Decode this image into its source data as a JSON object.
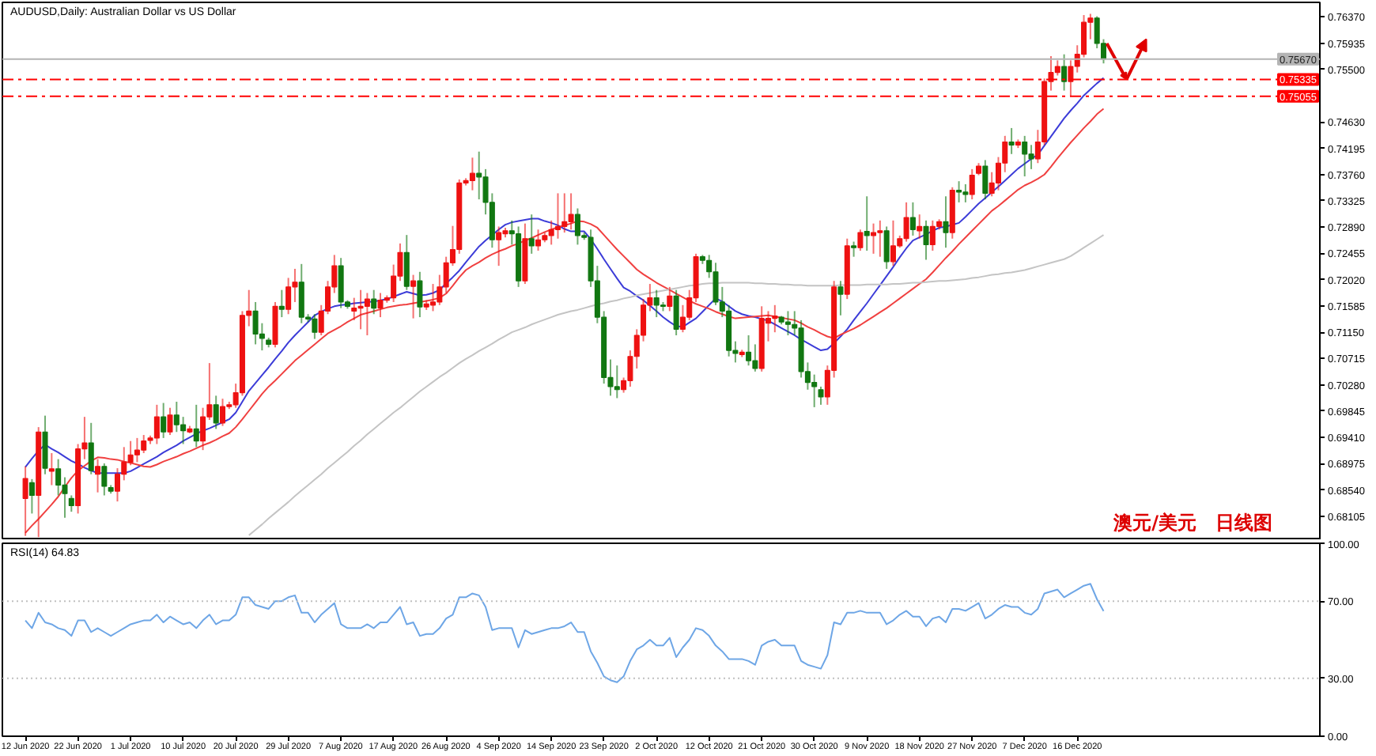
{
  "chart_data": [
    {
      "type": "candlestick",
      "title": "AUDUSD,Daily:  Australian Dollar vs US Dollar",
      "tick_labels": "y",
      "categories": [
        null,
        null,
        null,
        null,
        null,
        null,
        null,
        null,
        null,
        null,
        null,
        null,
        null,
        null,
        null,
        null,
        null,
        null,
        null,
        null,
        null,
        null,
        null,
        null,
        null,
        null,
        null,
        null,
        null,
        null,
        null,
        null,
        null,
        null,
        null,
        null,
        null,
        null,
        null,
        null,
        null,
        null,
        null,
        null,
        null,
        null,
        null,
        null,
        null,
        null,
        null,
        null,
        null,
        null,
        null,
        null,
        null,
        null,
        null,
        null,
        null,
        null,
        null,
        null,
        null,
        null,
        null,
        null,
        null,
        null,
        null,
        null,
        null,
        null,
        null,
        null,
        null,
        null,
        null,
        null,
        null,
        null,
        null,
        null,
        null,
        null,
        null,
        null,
        null,
        null,
        null,
        null,
        null,
        null,
        null,
        null,
        null,
        null,
        null,
        null,
        null,
        null,
        null,
        null,
        null,
        null,
        null,
        null,
        null,
        null,
        null,
        null,
        null,
        null,
        null,
        null,
        null,
        null,
        null,
        null,
        null,
        null,
        null,
        null,
        null,
        null,
        null,
        null,
        null,
        null,
        null,
        null,
        null,
        null,
        null,
        null,
        null,
        null,
        null,
        null,
        null,
        null,
        null,
        null,
        null,
        null,
        null,
        null,
        null,
        null,
        null,
        null,
        null,
        null,
        null,
        null,
        null,
        null,
        null,
        null,
        null,
        null,
        null,
        null,
        null
      ],
      "ohlc": [
        [
          0.684,
          0.6893,
          0.6778,
          0.6873
        ],
        [
          0.6866,
          0.6872,
          0.6815,
          0.6845
        ],
        [
          0.6845,
          0.6958,
          0.6776,
          0.695
        ],
        [
          0.695,
          0.6977,
          0.688,
          0.689
        ],
        [
          0.6885,
          0.6915,
          0.6862,
          0.6889
        ],
        [
          0.6889,
          0.6905,
          0.6845,
          0.6862
        ],
        [
          0.6862,
          0.6875,
          0.6808,
          0.6848
        ],
        [
          0.684,
          0.6845,
          0.6818,
          0.6828
        ],
        [
          0.6828,
          0.693,
          0.6815,
          0.6922
        ],
        [
          0.6922,
          0.6975,
          0.6905,
          0.6932
        ],
        [
          0.6932,
          0.6965,
          0.688,
          0.6886
        ],
        [
          0.688,
          0.6905,
          0.685,
          0.6893
        ],
        [
          0.6893,
          0.6898,
          0.6845,
          0.686
        ],
        [
          0.6858,
          0.6862,
          0.6848,
          0.6852
        ],
        [
          0.6852,
          0.689,
          0.6835,
          0.688
        ],
        [
          0.688,
          0.6925,
          0.687,
          0.69
        ],
        [
          0.69,
          0.6935,
          0.6895,
          0.6912
        ],
        [
          0.6912,
          0.694,
          0.69,
          0.692
        ],
        [
          0.692,
          0.6945,
          0.6915,
          0.6935
        ],
        [
          0.6936,
          0.6944,
          0.693,
          0.694
        ],
        [
          0.694,
          0.6995,
          0.693,
          0.6975
        ],
        [
          0.6975,
          0.6998,
          0.694,
          0.695
        ],
        [
          0.695,
          0.699,
          0.6945,
          0.6978
        ],
        [
          0.6978,
          0.7,
          0.695,
          0.6962
        ],
        [
          0.6962,
          0.6975,
          0.693,
          0.6952
        ],
        [
          0.695,
          0.696,
          0.6948,
          0.6955
        ],
        [
          0.6955,
          0.6995,
          0.6925,
          0.6935
        ],
        [
          0.6935,
          0.699,
          0.692,
          0.6975
        ],
        [
          0.6975,
          0.7064,
          0.697,
          0.6995
        ],
        [
          0.6995,
          0.701,
          0.6955,
          0.6965
        ],
        [
          0.6965,
          0.7005,
          0.696,
          0.6992
        ],
        [
          0.6992,
          0.7,
          0.6988,
          0.6995
        ],
        [
          0.6995,
          0.703,
          0.699,
          0.7015
        ],
        [
          0.7015,
          0.715,
          0.701,
          0.7143
        ],
        [
          0.7143,
          0.7185,
          0.7125,
          0.715
        ],
        [
          0.715,
          0.7165,
          0.7095,
          0.7112
        ],
        [
          0.7112,
          0.713,
          0.7085,
          0.7105
        ],
        [
          0.7102,
          0.7106,
          0.709,
          0.7095
        ],
        [
          0.7095,
          0.7165,
          0.709,
          0.7158
        ],
        [
          0.7158,
          0.7185,
          0.714,
          0.7153
        ],
        [
          0.7153,
          0.7205,
          0.7145,
          0.719
        ],
        [
          0.719,
          0.722,
          0.7165,
          0.7198
        ],
        [
          0.7198,
          0.7228,
          0.713,
          0.714
        ],
        [
          0.714,
          0.7145,
          0.7132,
          0.7137
        ],
        [
          0.7137,
          0.7145,
          0.7104,
          0.7115
        ],
        [
          0.7115,
          0.716,
          0.711,
          0.715
        ],
        [
          0.715,
          0.72,
          0.7145,
          0.719
        ],
        [
          0.719,
          0.7243,
          0.718,
          0.7225
        ],
        [
          0.7225,
          0.7238,
          0.7155,
          0.7165
        ],
        [
          0.7165,
          0.7168,
          0.7154,
          0.7158
        ],
        [
          0.715,
          0.7172,
          0.7135,
          0.7155
        ],
        [
          0.7155,
          0.7185,
          0.712,
          0.7158
        ],
        [
          0.7158,
          0.718,
          0.711,
          0.717
        ],
        [
          0.717,
          0.7185,
          0.7145,
          0.7155
        ],
        [
          0.7155,
          0.718,
          0.714,
          0.7168
        ],
        [
          0.7168,
          0.7176,
          0.7164,
          0.7172
        ],
        [
          0.7172,
          0.7227,
          0.7165,
          0.7208
        ],
        [
          0.7208,
          0.7262,
          0.72,
          0.7247
        ],
        [
          0.7247,
          0.7276,
          0.7185,
          0.7191
        ],
        [
          0.7191,
          0.721,
          0.7138,
          0.72
        ],
        [
          0.72,
          0.7215,
          0.714,
          0.7157
        ],
        [
          0.7157,
          0.7168,
          0.7152,
          0.7162
        ],
        [
          0.716,
          0.7195,
          0.715,
          0.7165
        ],
        [
          0.7165,
          0.721,
          0.716,
          0.719
        ],
        [
          0.719,
          0.724,
          0.718,
          0.723
        ],
        [
          0.723,
          0.7291,
          0.7225,
          0.7252
        ],
        [
          0.7252,
          0.7368,
          0.7245,
          0.7362
        ],
        [
          0.7362,
          0.737,
          0.7358,
          0.7366
        ],
        [
          0.7366,
          0.7404,
          0.735,
          0.7378
        ],
        [
          0.7378,
          0.7414,
          0.7335,
          0.7372
        ],
        [
          0.7372,
          0.7385,
          0.731,
          0.733
        ],
        [
          0.733,
          0.7345,
          0.7255,
          0.7268
        ],
        [
          0.7268,
          0.729,
          0.7225,
          0.728
        ],
        [
          0.7278,
          0.7288,
          0.7272,
          0.7283
        ],
        [
          0.7283,
          0.73,
          0.726,
          0.7278
        ],
        [
          0.7278,
          0.729,
          0.719,
          0.72
        ],
        [
          0.72,
          0.7295,
          0.7195,
          0.727
        ],
        [
          0.727,
          0.731,
          0.7245,
          0.7258
        ],
        [
          0.7258,
          0.7285,
          0.725,
          0.7268
        ],
        [
          0.7268,
          0.728,
          0.7264,
          0.7275
        ],
        [
          0.7275,
          0.73,
          0.726,
          0.7285
        ],
        [
          0.7285,
          0.7345,
          0.727,
          0.729
        ],
        [
          0.729,
          0.7345,
          0.728,
          0.7298
        ],
        [
          0.7298,
          0.7345,
          0.7285,
          0.731
        ],
        [
          0.731,
          0.732,
          0.726,
          0.7275
        ],
        [
          0.7275,
          0.728,
          0.7268,
          0.7272
        ],
        [
          0.7272,
          0.7285,
          0.719,
          0.72
        ],
        [
          0.72,
          0.7225,
          0.713,
          0.714
        ],
        [
          0.714,
          0.715,
          0.703,
          0.704
        ],
        [
          0.704,
          0.707,
          0.701,
          0.7025
        ],
        [
          0.7025,
          0.706,
          0.7006,
          0.702
        ],
        [
          0.702,
          0.704,
          0.7015,
          0.7035
        ],
        [
          0.7035,
          0.7085,
          0.7025,
          0.7075
        ],
        [
          0.7075,
          0.712,
          0.7055,
          0.711
        ],
        [
          0.711,
          0.717,
          0.71,
          0.716
        ],
        [
          0.716,
          0.7195,
          0.715,
          0.7172
        ],
        [
          0.7172,
          0.7185,
          0.714,
          0.716
        ],
        [
          0.716,
          0.7165,
          0.715,
          0.7158
        ],
        [
          0.7158,
          0.719,
          0.715,
          0.7175
        ],
        [
          0.7175,
          0.7185,
          0.711,
          0.712
        ],
        [
          0.712,
          0.716,
          0.7115,
          0.714
        ],
        [
          0.714,
          0.7185,
          0.7135,
          0.7172
        ],
        [
          0.7172,
          0.7245,
          0.7165,
          0.724
        ],
        [
          0.724,
          0.7243,
          0.7228,
          0.7234
        ],
        [
          0.7234,
          0.7243,
          0.7205,
          0.7215
        ],
        [
          0.7215,
          0.723,
          0.716,
          0.7165
        ],
        [
          0.7165,
          0.719,
          0.714,
          0.715
        ],
        [
          0.715,
          0.716,
          0.7075,
          0.7085
        ],
        [
          0.7085,
          0.71,
          0.7065,
          0.708
        ],
        [
          0.7078,
          0.7086,
          0.7074,
          0.7082
        ],
        [
          0.7082,
          0.711,
          0.706,
          0.7068
        ],
        [
          0.7068,
          0.7095,
          0.705,
          0.7055
        ],
        [
          0.7055,
          0.7158,
          0.705,
          0.7138
        ],
        [
          0.713,
          0.715,
          0.71,
          0.7138
        ],
        [
          0.7138,
          0.716,
          0.7115,
          0.7142
        ],
        [
          0.714,
          0.7142,
          0.7128,
          0.7132
        ],
        [
          0.7132,
          0.715,
          0.711,
          0.7128
        ],
        [
          0.7128,
          0.715,
          0.711,
          0.7122
        ],
        [
          0.7122,
          0.7135,
          0.704,
          0.705
        ],
        [
          0.705,
          0.7065,
          0.702,
          0.7032
        ],
        [
          0.7032,
          0.7045,
          0.6991,
          0.7025
        ],
        [
          0.702,
          0.7025,
          0.6995,
          0.7008
        ],
        [
          0.7008,
          0.706,
          0.6995,
          0.7052
        ],
        [
          0.7052,
          0.72,
          0.704,
          0.719
        ],
        [
          0.719,
          0.72,
          0.7143,
          0.7178
        ],
        [
          0.7178,
          0.727,
          0.717,
          0.7258
        ],
        [
          0.7258,
          0.7265,
          0.724,
          0.7255
        ],
        [
          0.7255,
          0.7285,
          0.725,
          0.728
        ],
        [
          0.7282,
          0.734,
          0.725,
          0.7275
        ],
        [
          0.7275,
          0.7295,
          0.7245,
          0.728
        ],
        [
          0.728,
          0.73,
          0.724,
          0.7283
        ],
        [
          0.7283,
          0.729,
          0.722,
          0.7232
        ],
        [
          0.7232,
          0.73,
          0.7225,
          0.7258
        ],
        [
          0.7258,
          0.7275,
          0.7255,
          0.727
        ],
        [
          0.727,
          0.733,
          0.7265,
          0.7305
        ],
        [
          0.7305,
          0.733,
          0.7275,
          0.7285
        ],
        [
          0.7283,
          0.731,
          0.727,
          0.729
        ],
        [
          0.729,
          0.73,
          0.7235,
          0.726
        ],
        [
          0.726,
          0.73,
          0.725,
          0.729
        ],
        [
          0.729,
          0.7302,
          0.7285,
          0.7298
        ],
        [
          0.7298,
          0.734,
          0.7255,
          0.728
        ],
        [
          0.728,
          0.7355,
          0.727,
          0.735
        ],
        [
          0.735,
          0.7365,
          0.733,
          0.7347
        ],
        [
          0.7347,
          0.736,
          0.733,
          0.7343
        ],
        [
          0.7343,
          0.7385,
          0.7335,
          0.7375
        ],
        [
          0.7378,
          0.7395,
          0.7375,
          0.739
        ],
        [
          0.739,
          0.74,
          0.7335,
          0.7345
        ],
        [
          0.7345,
          0.738,
          0.734,
          0.7362
        ],
        [
          0.7362,
          0.7405,
          0.735,
          0.7395
        ],
        [
          0.7395,
          0.744,
          0.738,
          0.743
        ],
        [
          0.743,
          0.7453,
          0.741,
          0.7425
        ],
        [
          0.7425,
          0.7434,
          0.742,
          0.743
        ],
        [
          0.743,
          0.744,
          0.7373,
          0.741
        ],
        [
          0.741,
          0.7425,
          0.7385,
          0.7402
        ],
        [
          0.7402,
          0.745,
          0.7395,
          0.743
        ],
        [
          0.743,
          0.7535,
          0.7425,
          0.753
        ],
        [
          0.753,
          0.7572,
          0.7515,
          0.7545
        ],
        [
          0.7545,
          0.7565,
          0.754,
          0.7555
        ],
        [
          0.7555,
          0.7575,
          0.7515,
          0.753
        ],
        [
          0.753,
          0.7565,
          0.7505,
          0.7555
        ],
        [
          0.7555,
          0.759,
          0.7545,
          0.7575
        ],
        [
          0.7575,
          0.764,
          0.757,
          0.7628
        ],
        [
          0.7628,
          0.7642,
          0.76,
          0.7635
        ],
        [
          0.7635,
          0.7638,
          0.7585,
          0.7593
        ],
        [
          0.7593,
          0.76,
          0.756,
          0.7567
        ]
      ],
      "colors": [
        "#ee1111",
        "#117711",
        "#ee1111",
        "#117711",
        "#ee1111",
        "#117711",
        "#117711",
        "#117711",
        "#ee1111",
        "#ee1111",
        "#117711",
        "#ee1111",
        "#117711",
        "#117711",
        "#ee1111",
        "#ee1111",
        "#ee1111",
        "#ee1111",
        "#ee1111",
        "#ee1111",
        "#ee1111",
        "#117711",
        "#ee1111",
        "#117711",
        "#117711",
        "#ee1111",
        "#117711",
        "#ee1111",
        "#ee1111",
        "#117711",
        "#ee1111",
        "#ee1111",
        "#ee1111",
        "#ee1111",
        "#ee1111",
        "#117711",
        "#117711",
        "#117711",
        "#ee1111",
        "#117711",
        "#ee1111",
        "#ee1111",
        "#117711",
        "#117711",
        "#117711",
        "#ee1111",
        "#ee1111",
        "#ee1111",
        "#117711",
        "#117711",
        "#ee1111",
        "#ee1111",
        "#ee1111",
        "#117711",
        "#ee1111",
        "#ee1111",
        "#ee1111",
        "#ee1111",
        "#117711",
        "#ee1111",
        "#117711",
        "#ee1111",
        "#ee1111",
        "#ee1111",
        "#ee1111",
        "#ee1111",
        "#ee1111",
        "#ee1111",
        "#ee1111",
        "#117711",
        "#117711",
        "#117711",
        "#ee1111",
        "#ee1111",
        "#117711",
        "#117711",
        "#ee1111",
        "#117711",
        "#ee1111",
        "#ee1111",
        "#ee1111",
        "#ee1111",
        "#ee1111",
        "#ee1111",
        "#117711",
        "#117711",
        "#117711",
        "#117711",
        "#117711",
        "#117711",
        "#117711",
        "#ee1111",
        "#ee1111",
        "#ee1111",
        "#ee1111",
        "#ee1111",
        "#117711",
        "#117711",
        "#ee1111",
        "#117711",
        "#ee1111",
        "#ee1111",
        "#ee1111",
        "#117711",
        "#117711",
        "#117711",
        "#117711",
        "#117711",
        "#117711",
        "#ee1111",
        "#117711",
        "#117711",
        "#ee1111",
        "#ee1111",
        "#ee1111",
        "#117711",
        "#117711",
        "#117711",
        "#117711",
        "#117711",
        "#117711",
        "#117711",
        "#ee1111",
        "#ee1111",
        "#117711",
        "#ee1111",
        "#117711",
        "#ee1111",
        "#117711",
        "#ee1111",
        "#ee1111",
        "#117711",
        "#ee1111",
        "#ee1111",
        "#ee1111",
        "#117711",
        "#ee1111",
        "#117711",
        "#ee1111",
        "#ee1111",
        "#117711",
        "#ee1111",
        "#117711",
        "#117711",
        "#ee1111",
        "#ee1111",
        "#117711",
        "#ee1111",
        "#ee1111",
        "#ee1111",
        "#117711",
        "#ee1111",
        "#117711",
        "#117711",
        "#ee1111",
        "#ee1111",
        "#ee1111",
        "#ee1111",
        "#117711",
        "#ee1111",
        "#ee1111",
        "#ee1111",
        "#ee1111",
        "#117711",
        "#117711"
      ],
      "series": [
        {
          "type": "line",
          "color": "#3c3cd8",
          "values": [
            0.6892,
            0.6906,
            0.6919,
            0.6929,
            0.6922,
            0.6916,
            0.6909,
            0.6902,
            0.6897,
            0.6891,
            0.6886,
            0.6882,
            0.6882,
            0.6882,
            0.6882,
            0.6882,
            0.6885,
            0.6891,
            0.6897,
            0.6903,
            0.6909,
            0.6916,
            0.6922,
            0.6928,
            0.6935,
            0.6941,
            0.6947,
            0.6952,
            0.6956,
            0.6961,
            0.6966,
            0.6971,
            0.6982,
            0.7,
            0.7018,
            0.7031,
            0.7044,
            0.7057,
            0.7071,
            0.7084,
            0.7098,
            0.711,
            0.7121,
            0.7132,
            0.7143,
            0.7149,
            0.7154,
            0.7158,
            0.716,
            0.7161,
            0.7163,
            0.7164,
            0.7165,
            0.7166,
            0.7168,
            0.717,
            0.7174,
            0.7178,
            0.7182,
            0.7179,
            0.7176,
            0.7177,
            0.718,
            0.7185,
            0.7196,
            0.7206,
            0.7217,
            0.7231,
            0.7244,
            0.7257,
            0.7267,
            0.7276,
            0.7285,
            0.7293,
            0.7297,
            0.7299,
            0.7301,
            0.7303,
            0.7303,
            0.7299,
            0.7296,
            0.7292,
            0.7286,
            0.7282,
            0.7282,
            0.7282,
            0.7269,
            0.7253,
            0.7236,
            0.722,
            0.7204,
            0.7189,
            0.7183,
            0.7175,
            0.7168,
            0.7159,
            0.715,
            0.714,
            0.7132,
            0.7125,
            0.7124,
            0.7131,
            0.7138,
            0.7149,
            0.716,
            0.7171,
            0.7166,
            0.7158,
            0.715,
            0.7145,
            0.7142,
            0.714,
            0.7137,
            0.7134,
            0.7128,
            0.7122,
            0.7116,
            0.711,
            0.7103,
            0.7097,
            0.7091,
            0.7085,
            0.7087,
            0.7097,
            0.7108,
            0.712,
            0.7135,
            0.7149,
            0.7163,
            0.7178,
            0.7193,
            0.7208,
            0.7223,
            0.7239,
            0.7254,
            0.7267,
            0.7272,
            0.7277,
            0.7283,
            0.7288,
            0.729,
            0.7293,
            0.7296,
            0.7306,
            0.7317,
            0.7328,
            0.7337,
            0.7347,
            0.7356,
            0.7366,
            0.7376,
            0.7386,
            0.7394,
            0.7402,
            0.7409,
            0.7424,
            0.7439,
            0.7454,
            0.7469,
            0.7482,
            0.7494,
            0.7507,
            0.7517,
            0.7527,
            0.7536
          ]
        },
        {
          "type": "line",
          "color": "#f04040",
          "values": [
            0.6783,
            0.6795,
            0.6806,
            0.6818,
            0.683,
            0.6843,
            0.6859,
            0.6874,
            0.6886,
            0.6894,
            0.6902,
            0.6908,
            0.6907,
            0.6905,
            0.6904,
            0.6901,
            0.6899,
            0.6896,
            0.6893,
            0.6892,
            0.6896,
            0.6901,
            0.6905,
            0.6909,
            0.6914,
            0.6918,
            0.6923,
            0.6928,
            0.6932,
            0.6937,
            0.6943,
            0.6948,
            0.6958,
            0.6971,
            0.6985,
            0.6999,
            0.7013,
            0.7025,
            0.7035,
            0.7046,
            0.7057,
            0.7068,
            0.7077,
            0.7086,
            0.7095,
            0.7104,
            0.7113,
            0.7119,
            0.7125,
            0.7132,
            0.7138,
            0.7144,
            0.7147,
            0.715,
            0.7153,
            0.7156,
            0.7158,
            0.716,
            0.7161,
            0.7163,
            0.7165,
            0.7167,
            0.7169,
            0.7172,
            0.7179,
            0.7192,
            0.7206,
            0.7218,
            0.7225,
            0.7231,
            0.7238,
            0.7244,
            0.7249,
            0.7253,
            0.7258,
            0.7262,
            0.7267,
            0.7271,
            0.7276,
            0.7281,
            0.7285,
            0.7289,
            0.7292,
            0.7295,
            0.7299,
            0.7298,
            0.7294,
            0.7288,
            0.7276,
            0.7264,
            0.7252,
            0.7241,
            0.723,
            0.7219,
            0.7211,
            0.7204,
            0.7197,
            0.7191,
            0.7185,
            0.7179,
            0.7173,
            0.7167,
            0.7162,
            0.7158,
            0.7154,
            0.7149,
            0.7145,
            0.7141,
            0.7138,
            0.7139,
            0.714,
            0.7141,
            0.7142,
            0.7143,
            0.7141,
            0.7139,
            0.7137,
            0.7135,
            0.713,
            0.7124,
            0.7119,
            0.7113,
            0.7108,
            0.7105,
            0.7111,
            0.7116,
            0.7121,
            0.7127,
            0.7134,
            0.7141,
            0.7148,
            0.7155,
            0.7163,
            0.7171,
            0.7179,
            0.7187,
            0.7195,
            0.7203,
            0.7214,
            0.7226,
            0.7238,
            0.7249,
            0.7261,
            0.7272,
            0.7283,
            0.7294,
            0.7305,
            0.7316,
            0.7324,
            0.7333,
            0.7342,
            0.7351,
            0.7358,
            0.7363,
            0.7369,
            0.7376,
            0.7389,
            0.7403,
            0.7416,
            0.7429,
            0.7441,
            0.7453,
            0.7464,
            0.7476,
            0.7485
          ]
        },
        {
          "type": "line",
          "color": "#c4c4c4",
          "values": [
            null,
            null,
            null,
            null,
            null,
            null,
            null,
            null,
            null,
            null,
            null,
            null,
            null,
            null,
            null,
            null,
            null,
            null,
            null,
            null,
            null,
            null,
            null,
            null,
            null,
            null,
            null,
            null,
            null,
            null,
            null,
            null,
            null,
            null,
            0.6779,
            0.6788,
            0.6797,
            0.6807,
            0.6816,
            0.6825,
            0.6834,
            0.6844,
            0.6853,
            0.6862,
            0.6871,
            0.688,
            0.689,
            0.6899,
            0.6908,
            0.6917,
            0.6927,
            0.6936,
            0.6946,
            0.6955,
            0.6964,
            0.6973,
            0.6982,
            0.699,
            0.6999,
            0.7008,
            0.7017,
            0.7025,
            0.7033,
            0.7041,
            0.7048,
            0.7056,
            0.7064,
            0.7071,
            0.7077,
            0.7084,
            0.709,
            0.7096,
            0.7103,
            0.7109,
            0.7115,
            0.7119,
            0.7123,
            0.7128,
            0.7132,
            0.7136,
            0.714,
            0.7144,
            0.7147,
            0.715,
            0.7152,
            0.7155,
            0.7158,
            0.7161,
            0.7163,
            0.7166,
            0.7168,
            0.7171,
            0.7173,
            0.7176,
            0.7178,
            0.718,
            0.7182,
            0.7184,
            0.7186,
            0.7188,
            0.719,
            0.7192,
            0.7193,
            0.7195,
            0.7196,
            0.7196,
            0.7197,
            0.7197,
            0.7197,
            0.7197,
            0.7197,
            0.7196,
            0.7196,
            0.7195,
            0.7195,
            0.7194,
            0.7194,
            0.7193,
            0.7193,
            0.7192,
            0.7192,
            0.7192,
            0.7192,
            0.7192,
            0.7193,
            0.7193,
            0.7193,
            0.7193,
            0.7194,
            0.7194,
            0.7194,
            0.7194,
            0.7195,
            0.7195,
            0.7196,
            0.7197,
            0.7197,
            0.7198,
            0.7199,
            0.72,
            0.72,
            0.7201,
            0.7202,
            0.7203,
            0.7205,
            0.7206,
            0.7208,
            0.721,
            0.7211,
            0.7213,
            0.7214,
            0.7216,
            0.7218,
            0.7221,
            0.7224,
            0.7227,
            0.723,
            0.7233,
            0.7236,
            0.7241,
            0.7248,
            0.7255,
            0.7262,
            0.7269,
            0.7276
          ]
        }
      ],
      "ylim": [
        0.6771,
        0.7661
      ],
      "yticks": [
        {
          "value": 0.7637,
          "label": "0.76370"
        },
        0.75935,
        {
          "value": 0.755,
          "label": "0.75500"
        },
        {
          "value": 0.7463,
          "label": "0.74630"
        },
        0.74195,
        {
          "value": 0.7376,
          "label": "0.73760"
        },
        0.73325,
        {
          "value": 0.7289,
          "label": "0.72890"
        },
        0.72455,
        {
          "value": 0.7202,
          "label": "0.72020"
        },
        0.71585,
        {
          "value": 0.7115,
          "label": "0.71150"
        },
        0.70715,
        {
          "value": 0.7028,
          "label": "0.70280"
        },
        0.69845,
        {
          "value": 0.6941,
          "label": "0.69410"
        },
        0.68975,
        {
          "value": 0.6854,
          "label": "0.68540"
        },
        0.68105
      ],
      "ref_lines": [
        {
          "axis": "y",
          "value": 0.75335,
          "label": "0.75335",
          "color": "#ff0000",
          "line_style": "dashed"
        },
        {
          "axis": "y",
          "value": 0.75055,
          "label": "0.75055",
          "color": "#ff0000",
          "line_style": "dashed"
        },
        {
          "axis": "y",
          "value": 0.7567,
          "label": "0.75670",
          "color": "#b4b4b4",
          "line_style": "solid"
        }
      ],
      "annotations": [
        "澳元/美元　日线图"
      ]
    },
    {
      "type": "line",
      "title": "RSI(14) 64.83",
      "categories": [
        "12 Jun 2020",
        null,
        null,
        null,
        null,
        null,
        null,
        null,
        "22 Jun 2020",
        null,
        null,
        null,
        null,
        null,
        null,
        null,
        "1 Jul 2020",
        null,
        null,
        null,
        null,
        null,
        null,
        null,
        "10 Jul 2020",
        null,
        null,
        null,
        null,
        null,
        null,
        null,
        "20 Jul 2020",
        null,
        null,
        null,
        null,
        null,
        null,
        null,
        "29 Jul 2020",
        null,
        null,
        null,
        null,
        null,
        null,
        null,
        "7 Aug 2020",
        null,
        null,
        null,
        null,
        null,
        null,
        null,
        "17 Aug 2020",
        null,
        null,
        null,
        null,
        null,
        null,
        null,
        "26 Aug 2020",
        null,
        null,
        null,
        null,
        null,
        null,
        null,
        "4 Sep 2020",
        null,
        null,
        null,
        null,
        null,
        null,
        null,
        "14 Sep 2020",
        null,
        null,
        null,
        null,
        null,
        null,
        null,
        "23 Sep 2020",
        null,
        null,
        null,
        null,
        null,
        null,
        null,
        "2 Oct 2020",
        null,
        null,
        null,
        null,
        null,
        null,
        null,
        "12 Oct 2020",
        null,
        null,
        null,
        null,
        null,
        null,
        null,
        "21 Oct 2020",
        null,
        null,
        null,
        null,
        null,
        null,
        null,
        "30 Oct 2020",
        null,
        null,
        null,
        null,
        null,
        null,
        null,
        "9 Nov 2020",
        null,
        null,
        null,
        null,
        null,
        null,
        null,
        "18 Nov 2020",
        null,
        null,
        null,
        null,
        null,
        null,
        null,
        "27 Nov 2020",
        null,
        null,
        null,
        null,
        null,
        null,
        null,
        "7 Dec 2020",
        null,
        null,
        null,
        null,
        null,
        null,
        null,
        "16 Dec 2020",
        null,
        null,
        null,
        null
      ],
      "series": [
        {
          "color": "#6ea6e6",
          "values": [
            60,
            56,
            64,
            59,
            58,
            56,
            55,
            52,
            60,
            60,
            54,
            56,
            54,
            52,
            54,
            56,
            58,
            59,
            60,
            60,
            63,
            59,
            62,
            60,
            58,
            59,
            56,
            60,
            63,
            58,
            60,
            60,
            63,
            72,
            72,
            68,
            67,
            66,
            70,
            70,
            72,
            73,
            64,
            64,
            59,
            63,
            66,
            69,
            58,
            56,
            56,
            56,
            58,
            56,
            59,
            59,
            63,
            67,
            58,
            59,
            52,
            53,
            53,
            56,
            61,
            63,
            72,
            72,
            74,
            73,
            67,
            55,
            56,
            56,
            56,
            46,
            55,
            53,
            54,
            55,
            56,
            56,
            57,
            59,
            54,
            54,
            44,
            38,
            31,
            29,
            28,
            31,
            39,
            45,
            47,
            50,
            47,
            47,
            51,
            41,
            46,
            50,
            56,
            55,
            52,
            47,
            44,
            40,
            40,
            40,
            39,
            37,
            47,
            49,
            50,
            47,
            47,
            47,
            39,
            37,
            36,
            35,
            42,
            59,
            58,
            64,
            64,
            65,
            64,
            64,
            64,
            58,
            60,
            63,
            65,
            62,
            62,
            57,
            61,
            62,
            59,
            66,
            66,
            65,
            67,
            69,
            61,
            63,
            66,
            68,
            67,
            67,
            64,
            63,
            66,
            74,
            75,
            76,
            72,
            74,
            76,
            78,
            79,
            71,
            64.83
          ]
        }
      ],
      "ylim": [
        0,
        100
      ],
      "yticks": [
        {
          "value": 100,
          "label": "100.00"
        },
        {
          "value": 70,
          "label": "70.00"
        },
        {
          "value": 30,
          "label": "30.00"
        },
        {
          "value": 0,
          "label": "0.00"
        }
      ],
      "ref_lines": [
        {
          "axis": "y",
          "value": 70,
          "color": "#c0c0c0",
          "line_style": "dotted"
        },
        {
          "axis": "y",
          "value": 30,
          "color": "#c0c0c0",
          "line_style": "dotted"
        }
      ]
    }
  ]
}
